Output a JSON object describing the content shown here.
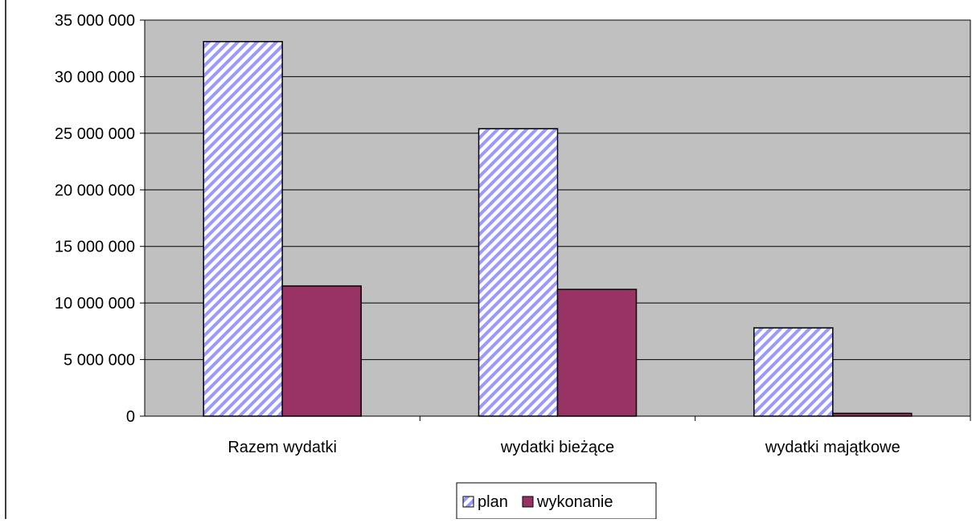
{
  "chart_data": {
    "type": "bar",
    "categories": [
      "Razem wydatki",
      "wydatki bieżące",
      "wydatki majątkowe"
    ],
    "series": [
      {
        "name": "plan",
        "values": [
          33100000,
          25400000,
          7800000
        ],
        "pattern": "diagonal-stripes",
        "color": "#9999ff"
      },
      {
        "name": "wykonanie",
        "values": [
          11500000,
          11200000,
          250000
        ],
        "color": "#993366"
      }
    ],
    "yticks": [
      "0",
      "5 000 000",
      "10 000 000",
      "15 000 000",
      "20 000 000",
      "25 000 000",
      "30 000 000",
      "35 000 000"
    ],
    "ylim": [
      0,
      35000000
    ],
    "grid": true,
    "legend_position": "bottom-center",
    "plot_background": "#c0c0c0"
  }
}
